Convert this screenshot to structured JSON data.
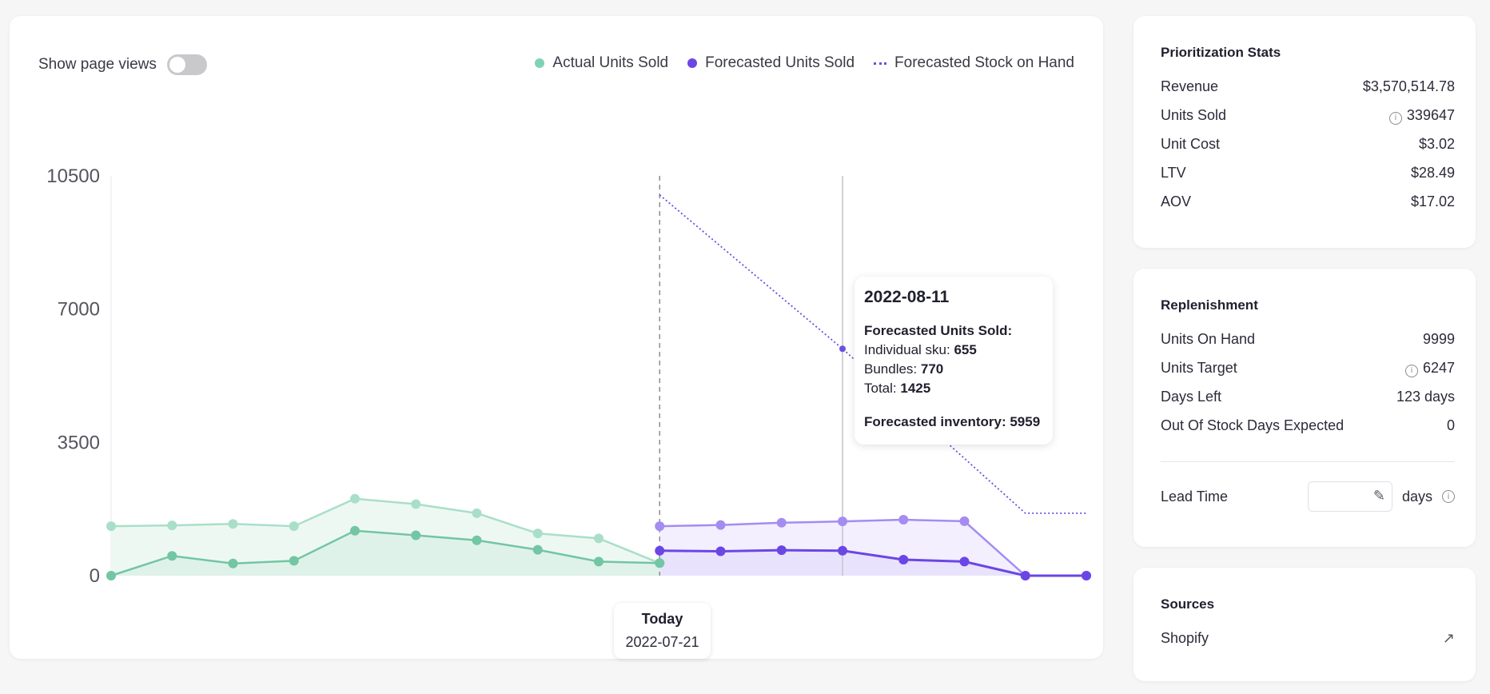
{
  "chart_toolbar": {
    "toggle_label": "Show page views"
  },
  "legend": [
    {
      "label": "Actual Units Sold",
      "color": "#7fd3b4",
      "style": "dot"
    },
    {
      "label": "Forecasted Units Sold",
      "color": "#6b46e5",
      "style": "dot"
    },
    {
      "label": "Forecasted Stock on Hand",
      "color": "#6b4fe0",
      "style": "dotted"
    }
  ],
  "chart_data": {
    "type": "line",
    "y_ticks": [
      "10500",
      "7000",
      "3500",
      "0"
    ],
    "ylim": [
      0,
      10500
    ],
    "grid": false,
    "legend_position": "top-right",
    "today_label": "Today",
    "today_date": "2022-07-21",
    "today_index": 9,
    "hover_index": 12,
    "n_points": 17,
    "series": [
      {
        "name": "Actual Units Sold",
        "kind": "actual-total",
        "color": "#a9dfc9",
        "start": 0,
        "values": [
          1300,
          1320,
          1360,
          1300,
          2020,
          1880,
          1640,
          1110,
          980,
          330
        ]
      },
      {
        "name": "Actual Units Sold",
        "kind": "actual-line",
        "color": "#72c6a3",
        "start": 0,
        "values": [
          0,
          520,
          320,
          390,
          1180,
          1060,
          930,
          680,
          370,
          330
        ]
      },
      {
        "name": "Forecasted Units Sold",
        "kind": "forecast-total",
        "color": "#a48cf2",
        "start": 9,
        "values": [
          1300,
          1330,
          1390,
          1425,
          1470,
          1430,
          0,
          0
        ]
      },
      {
        "name": "Forecasted Units Sold",
        "kind": "forecast-line",
        "color": "#6b46e5",
        "start": 9,
        "values": [
          655,
          640,
          670,
          655,
          420,
          370,
          0,
          0
        ]
      },
      {
        "name": "Forecasted Stock on Hand",
        "kind": "stock",
        "color": "#6b4fe0",
        "start": 9,
        "values": [
          10000,
          5959,
          1640,
          1640
        ]
      }
    ],
    "stock_x_index": [
      9,
      12,
      15,
      16
    ]
  },
  "tooltip": {
    "date": "2022-08-11",
    "heading": "Forecasted Units Sold:",
    "individual_label": "Individual sku: ",
    "individual_value": "655",
    "bundles_label": "Bundles: ",
    "bundles_value": "770",
    "total_label": "Total: ",
    "total_value": "1425",
    "inventory_label": "Forecasted inventory: ",
    "inventory_value": "5959"
  },
  "prioritization": {
    "title": "Prioritization Stats",
    "rows": [
      {
        "label": "Revenue",
        "value": "$3,570,514.78",
        "info": false
      },
      {
        "label": "Units Sold",
        "value": "339647",
        "info": true
      },
      {
        "label": "Unit Cost",
        "value": "$3.02",
        "info": false
      },
      {
        "label": "LTV",
        "value": "$28.49",
        "info": false
      },
      {
        "label": "AOV",
        "value": "$17.02",
        "info": false
      }
    ]
  },
  "replenishment": {
    "title": "Replenishment",
    "rows": [
      {
        "label": "Units On Hand",
        "value": "9999",
        "info": false
      },
      {
        "label": "Units Target",
        "value": "6247",
        "info": true
      },
      {
        "label": "Days Left",
        "value": "123 days",
        "info": false
      },
      {
        "label": "Out Of Stock Days Expected",
        "value": "0",
        "info": false
      }
    ],
    "lead_time_label": "Lead Time",
    "lead_time_value": "",
    "lead_time_unit": "days"
  },
  "sources": {
    "title": "Sources",
    "items": [
      {
        "label": "Shopify"
      }
    ]
  }
}
